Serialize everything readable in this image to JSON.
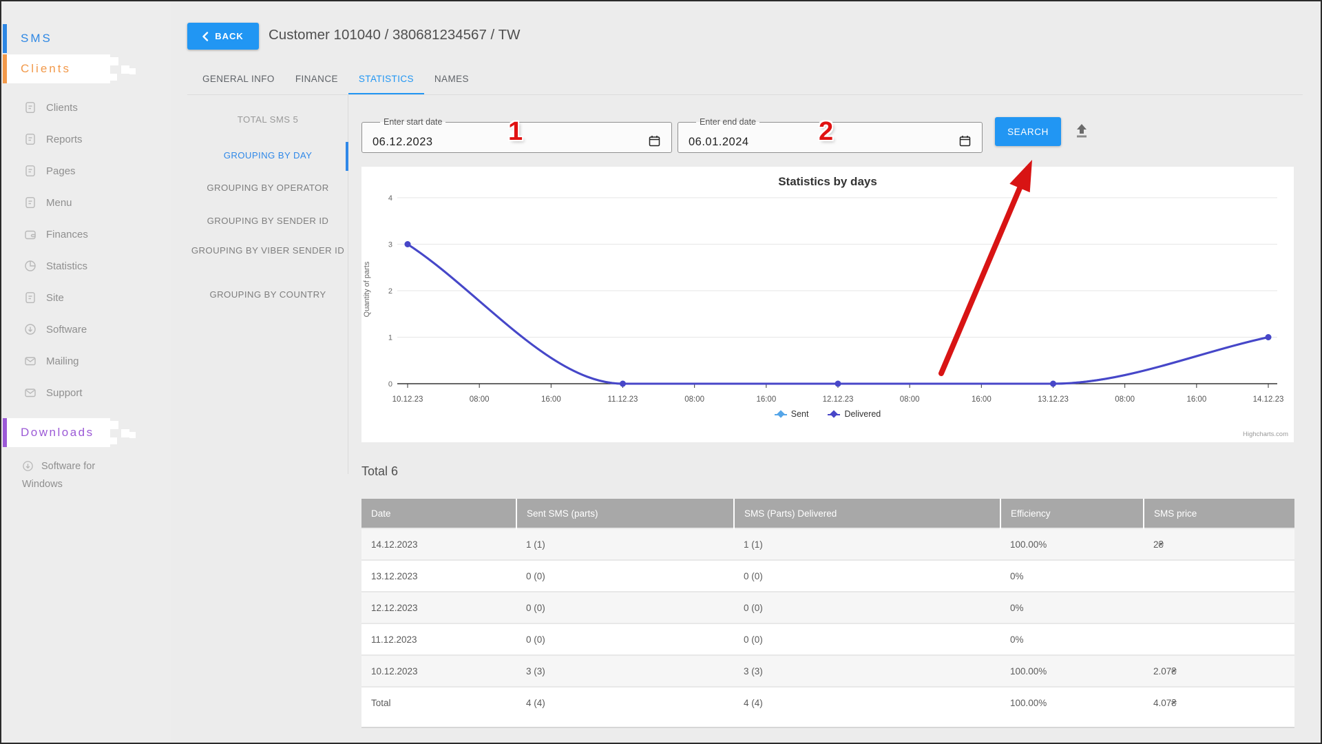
{
  "sidebar": {
    "sms_label": "SMS",
    "clients_label": "Clients",
    "items": [
      {
        "label": "Clients",
        "icon": "document-icon"
      },
      {
        "label": "Reports",
        "icon": "document-icon"
      },
      {
        "label": "Pages",
        "icon": "document-icon"
      },
      {
        "label": "Menu",
        "icon": "document-icon"
      },
      {
        "label": "Finances",
        "icon": "wallet-icon"
      },
      {
        "label": "Statistics",
        "icon": "pie-chart-icon"
      },
      {
        "label": "Site",
        "icon": "document-icon"
      },
      {
        "label": "Software",
        "icon": "download-circle-icon"
      },
      {
        "label": "Mailing",
        "icon": "envelope-icon"
      },
      {
        "label": "Support",
        "icon": "envelope-icon"
      }
    ],
    "downloads_label": "Downloads",
    "downloads_items": [
      {
        "label": "Software for Windows",
        "icon": "download-circle-icon"
      }
    ]
  },
  "header": {
    "back_label": "BACK",
    "title": "Customer 101040 / 380681234567 / TW"
  },
  "tabs": [
    {
      "label": "GENERAL INFO",
      "active": false
    },
    {
      "label": "FINANCE",
      "active": false
    },
    {
      "label": "STATISTICS",
      "active": true
    },
    {
      "label": "NAMES",
      "active": false
    }
  ],
  "submenu": {
    "total_label": "TOTAL SMS 5",
    "items": [
      "GROUPING BY DAY",
      "GROUPING BY OPERATOR",
      "GROUPING BY SENDER ID",
      "GROUPING BY VIBER SENDER ID",
      "GROUPING BY COUNTRY"
    ],
    "active_item": "GROUPING BY DAY"
  },
  "filters": {
    "start": {
      "label": "Enter start date",
      "value": "06.12.2023"
    },
    "end": {
      "label": "Enter end date",
      "value": "06.01.2024"
    },
    "search_label": "SEARCH"
  },
  "annotations": {
    "step1": "1",
    "step2": "2"
  },
  "chart_data": {
    "type": "line",
    "title": "Statistics by days",
    "xlabel": "",
    "ylabel": "Quantity of parts",
    "ylim": [
      0,
      4
    ],
    "y_ticks": [
      0,
      1,
      2,
      3,
      4
    ],
    "x_tick_labels": [
      "10.12.23",
      "08:00",
      "16:00",
      "11.12.23",
      "08:00",
      "16:00",
      "12.12.23",
      "08:00",
      "16:00",
      "13.12.23",
      "08:00",
      "16:00",
      "14.12.23"
    ],
    "x_day_index": [
      0,
      1,
      2,
      3,
      4
    ],
    "x_categories_days": [
      "10.12.23",
      "11.12.23",
      "12.12.23",
      "13.12.23",
      "14.12.23"
    ],
    "series": [
      {
        "name": "Sent",
        "color": "#55a5e8",
        "values": [
          3,
          0,
          0,
          0,
          1
        ]
      },
      {
        "name": "Delivered",
        "color": "#4846c8",
        "values": [
          3,
          0,
          0,
          0,
          1
        ]
      }
    ],
    "grid": true,
    "legend_position": "bottom",
    "credits": "Highcharts.com"
  },
  "table": {
    "total_label": "Total 6",
    "headers": [
      "Date",
      "Sent SMS (parts)",
      "SMS (Parts) Delivered",
      "Efficiency",
      "SMS price"
    ],
    "rows": [
      {
        "cells": [
          "14.12.2023",
          "1 (1)",
          "1 (1)",
          "100.00%",
          "2₴"
        ]
      },
      {
        "cells": [
          "13.12.2023",
          "0 (0)",
          "0 (0)",
          "0%",
          ""
        ]
      },
      {
        "cells": [
          "12.12.2023",
          "0 (0)",
          "0 (0)",
          "0%",
          ""
        ]
      },
      {
        "cells": [
          "11.12.2023",
          "0 (0)",
          "0 (0)",
          "0%",
          ""
        ]
      },
      {
        "cells": [
          "10.12.2023",
          "3 (3)",
          "3 (3)",
          "100.00%",
          "2.07₴"
        ]
      },
      {
        "cells": [
          "Total",
          "4 (4)",
          "4 (4)",
          "100.00%",
          "4.07₴"
        ]
      }
    ]
  },
  "colors": {
    "accent_blue": "#2196f3",
    "sms_blue": "#2d87e4",
    "clients_orange": "#f2994a",
    "downloads_purple": "#9b59d6",
    "annotation_red": "#d81414",
    "table_header_gray": "#a8a8a8",
    "series_sent": "#55a5e8",
    "series_delivered": "#4846c8"
  }
}
